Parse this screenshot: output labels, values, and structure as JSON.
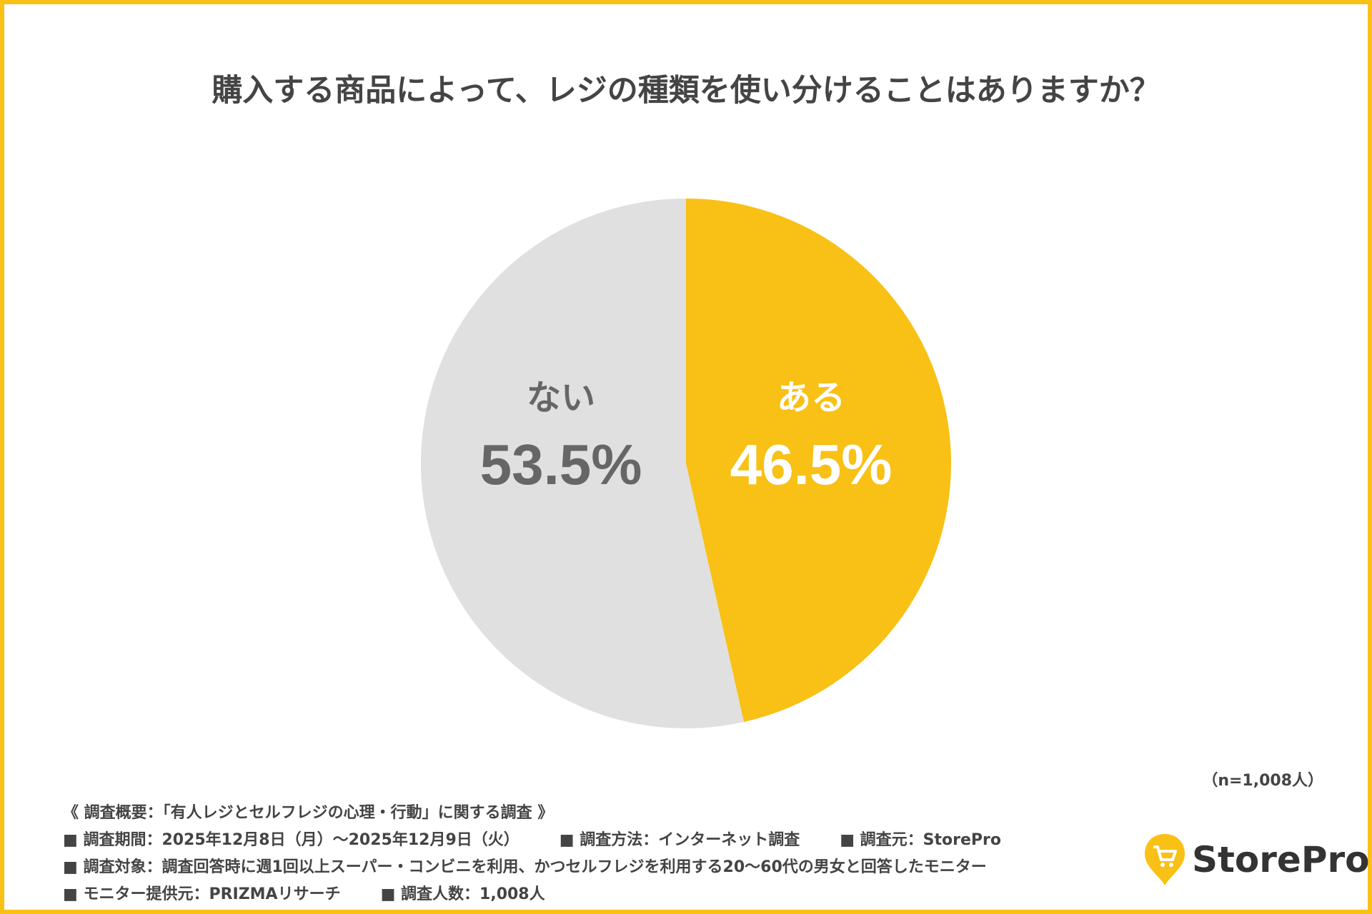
{
  "chart_data": {
    "type": "pie",
    "title": "購入する商品によって、レジの種類を使い分けることはありますか？",
    "slices": [
      {
        "label": "ある",
        "value": 46.5,
        "display": "46.5%",
        "color": "#F9C015",
        "text_color": "#FFFFFF"
      },
      {
        "label": "ない",
        "value": 53.5,
        "display": "53.5%",
        "color": "#E0E0E0",
        "text_color": "#666666"
      }
    ],
    "start": "12 o'clock",
    "direction": "clockwise",
    "sample": "（n=1,008人）"
  },
  "notes": {
    "heading": "《 調査概要：「有人レジとセルフレジの心理・行動」に関する調査 》",
    "rows": [
      [
        "■ 調査期間：2025年12月8日（月）〜2025年12月9日（火）",
        "■ 調査方法：インターネット調査",
        "■ 調査元：StorePro"
      ],
      [
        "■ 調査対象：調査回答時に週1回以上スーパー・コンビニを利用、かつセルフレジを利用する20〜60代の男女と回答したモニター"
      ],
      [
        "■ モニター提供元：PRIZMAリサーチ",
        "■ 調査人数：1,008人"
      ]
    ]
  },
  "logo": {
    "text": "StorePro",
    "icon": "cart-pin-icon",
    "color": "#F9C015"
  },
  "colors": {
    "border": "#F9C015"
  }
}
